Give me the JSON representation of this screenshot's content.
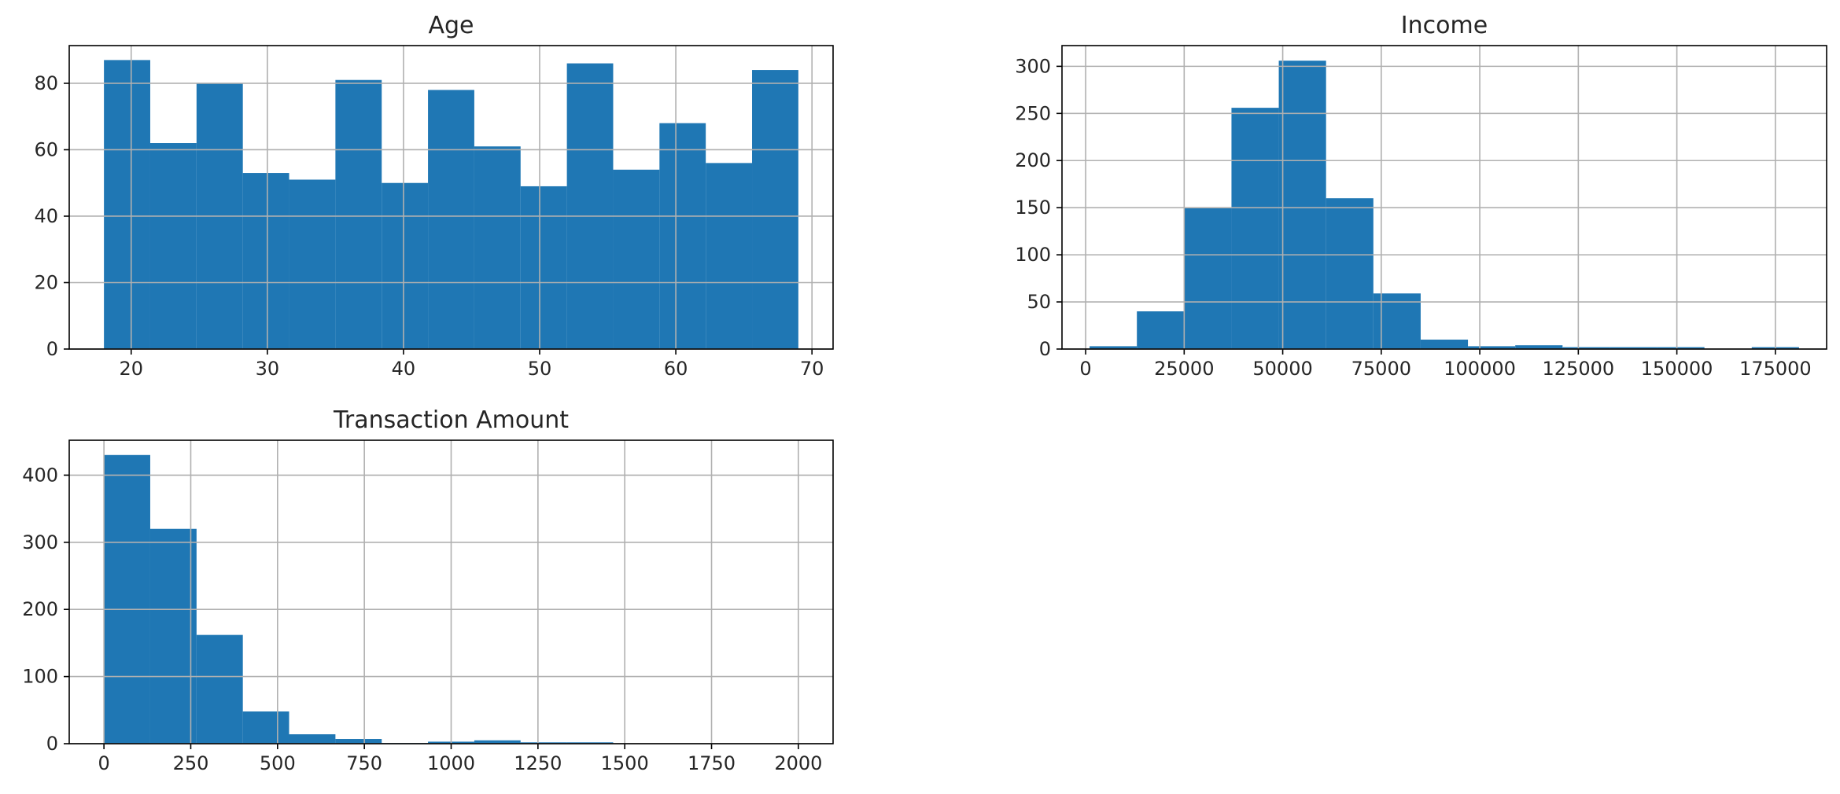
{
  "chart_data": [
    {
      "type": "bar",
      "title": "Age",
      "xlabel": "",
      "ylabel": "",
      "xlim": [
        15.45,
        71.55
      ],
      "ylim": [
        0,
        91.35
      ],
      "xticks": [
        20,
        30,
        40,
        50,
        60,
        70
      ],
      "yticks": [
        0,
        20,
        40,
        60,
        80
      ],
      "grid": true,
      "bin_edges": [
        18,
        21.4,
        24.8,
        28.2,
        31.6,
        35,
        38.4,
        41.8,
        45.2,
        48.6,
        52,
        55.4,
        58.8,
        62.2,
        65.6,
        69
      ],
      "values": [
        87,
        62,
        80,
        53,
        51,
        81,
        50,
        78,
        61,
        49,
        86,
        54,
        68,
        56,
        84
      ]
    },
    {
      "type": "bar",
      "title": "Income",
      "xlabel": "",
      "ylabel": "",
      "xlim": [
        -6000,
        188000
      ],
      "ylim": [
        0,
        322
      ],
      "xticks": [
        0,
        25000,
        50000,
        75000,
        100000,
        125000,
        150000,
        175000
      ],
      "yticks": [
        0,
        50,
        100,
        150,
        200,
        250,
        300
      ],
      "grid": true,
      "bin_edges": [
        1000,
        13000,
        25000,
        37000,
        49000,
        61000,
        73000,
        85000,
        97000,
        109000,
        121000,
        133000,
        145000,
        157000,
        169000,
        181000
      ],
      "values": [
        3,
        40,
        150,
        256,
        306,
        160,
        59,
        10,
        3,
        4,
        2,
        2,
        2,
        0,
        2
      ]
    },
    {
      "type": "bar",
      "title": "Transaction Amount",
      "xlabel": "",
      "ylabel": "",
      "xlim": [
        -100,
        2100
      ],
      "ylim": [
        0,
        452
      ],
      "xticks": [
        0,
        250,
        500,
        750,
        1000,
        1250,
        1500,
        1750,
        2000
      ],
      "yticks": [
        0,
        100,
        200,
        300,
        400
      ],
      "grid": true,
      "bin_edges": [
        0,
        133.3,
        266.7,
        400,
        533.3,
        666.7,
        800,
        933.3,
        1066.7,
        1200,
        1333.3,
        1466.7,
        1600,
        1733.3,
        1866.7,
        2000
      ],
      "values": [
        430,
        320,
        162,
        48,
        14,
        7,
        1,
        3,
        5,
        2,
        2,
        0,
        0,
        0,
        0
      ]
    }
  ],
  "colors": {
    "bar": "#1f77b4",
    "grid": "#b0b0b0",
    "axes": "#000000",
    "text": "#262626"
  }
}
